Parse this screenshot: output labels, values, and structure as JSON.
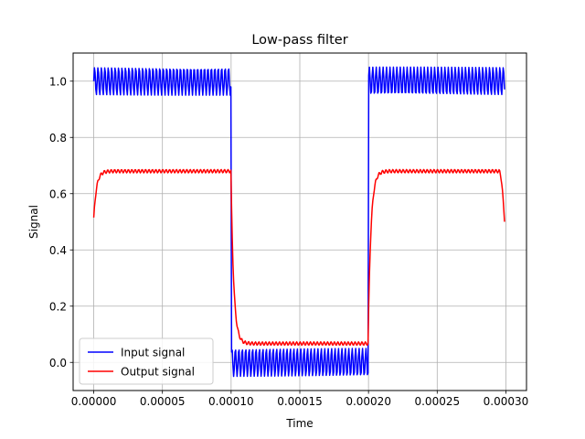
{
  "chart_data": {
    "type": "line",
    "title": "Low-pass filter",
    "xlabel": "Time",
    "ylabel": "Signal",
    "xlim": [
      -1.5e-05,
      0.000315
    ],
    "ylim": [
      -0.1,
      1.1
    ],
    "xticks": [
      0,
      5e-05,
      0.0001,
      0.00015,
      0.0002,
      0.00025,
      0.0003
    ],
    "xtick_labels": [
      "0.00000",
      "0.00005",
      "0.00010",
      "0.00015",
      "0.00020",
      "0.00025",
      "0.00030"
    ],
    "yticks": [
      0,
      0.2,
      0.4,
      0.6,
      0.8,
      1.0
    ],
    "ytick_labels": [
      "0.0",
      "0.2",
      "0.4",
      "0.6",
      "0.8",
      "1.0"
    ],
    "grid": true,
    "legend_position": "lower-left",
    "series": [
      {
        "name": "Input signal",
        "color": "#0000ff",
        "description": "square wave period 0.0002, levels 0 and 1, with high-frequency ripple amplitude ~0.05",
        "x_range": [
          0,
          0.000299
        ],
        "levels": {
          "high": 1.0,
          "low": 0.0
        },
        "ripple_amplitude": 0.05
      },
      {
        "name": "Output signal",
        "color": "#ff0000",
        "description": "filtered square wave",
        "x_range": [
          0,
          0.000299
        ],
        "levels": {
          "high": 0.68,
          "low": 0.067
        },
        "start_value": 0.51,
        "end_value": 0.5,
        "ripple_amplitude": 0.006
      }
    ]
  }
}
